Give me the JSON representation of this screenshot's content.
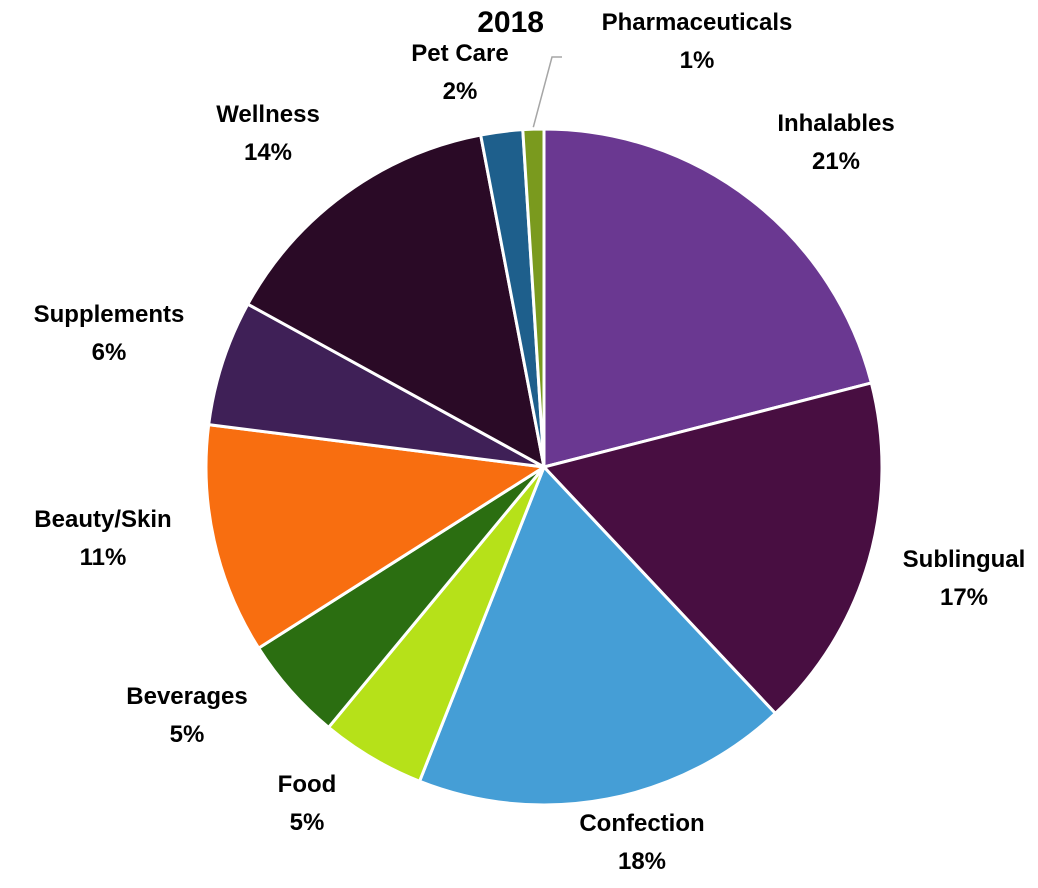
{
  "chart_data": {
    "type": "pie",
    "title": "2018",
    "slices": [
      {
        "label": "Inhalables",
        "value": 21,
        "value_label": "21%",
        "color": "#6a3891"
      },
      {
        "label": "Sublingual",
        "value": 17,
        "value_label": "17%",
        "color": "#480e41"
      },
      {
        "label": "Confection",
        "value": 18,
        "value_label": "18%",
        "color": "#459ed6"
      },
      {
        "label": "Food",
        "value": 5,
        "value_label": "5%",
        "color": "#b6e119"
      },
      {
        "label": "Beverages",
        "value": 5,
        "value_label": "5%",
        "color": "#2b6e11"
      },
      {
        "label": "Beauty/Skin",
        "value": 11,
        "value_label": "11%",
        "color": "#f86e10"
      },
      {
        "label": "Supplements",
        "value": 6,
        "value_label": "6%",
        "color": "#3f2057"
      },
      {
        "label": "Wellness",
        "value": 14,
        "value_label": "14%",
        "color": "#2a0a26"
      },
      {
        "label": "Pet Care",
        "value": 2,
        "value_label": "2%",
        "color": "#1e5f8c"
      },
      {
        "label": "Pharmaceuticals",
        "value": 1,
        "value_label": "1%",
        "color": "#7a9a1e"
      }
    ]
  }
}
